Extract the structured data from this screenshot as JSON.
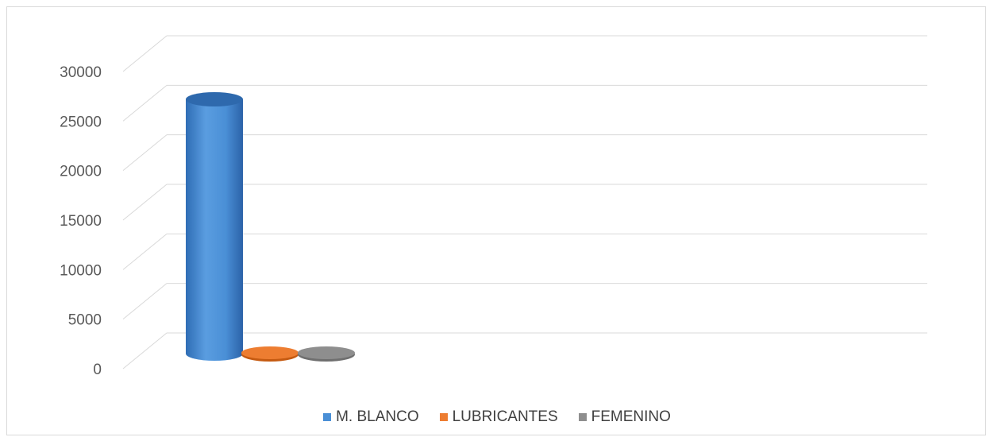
{
  "chart_data": {
    "type": "bar",
    "title": "",
    "xlabel": "",
    "ylabel": "",
    "ylim": [
      0,
      30000
    ],
    "yticks": [
      0,
      5000,
      10000,
      15000,
      20000,
      25000,
      30000
    ],
    "grid": true,
    "legend_position": "bottom",
    "series": [
      {
        "name": "M. BLANCO",
        "value": 26300,
        "color": "#4a8fd6"
      },
      {
        "name": "LUBRICANTES",
        "value": 0,
        "color": "#ed7d31"
      },
      {
        "name": "FEMENINO",
        "value": 0,
        "color": "#8e8e8e"
      }
    ]
  }
}
